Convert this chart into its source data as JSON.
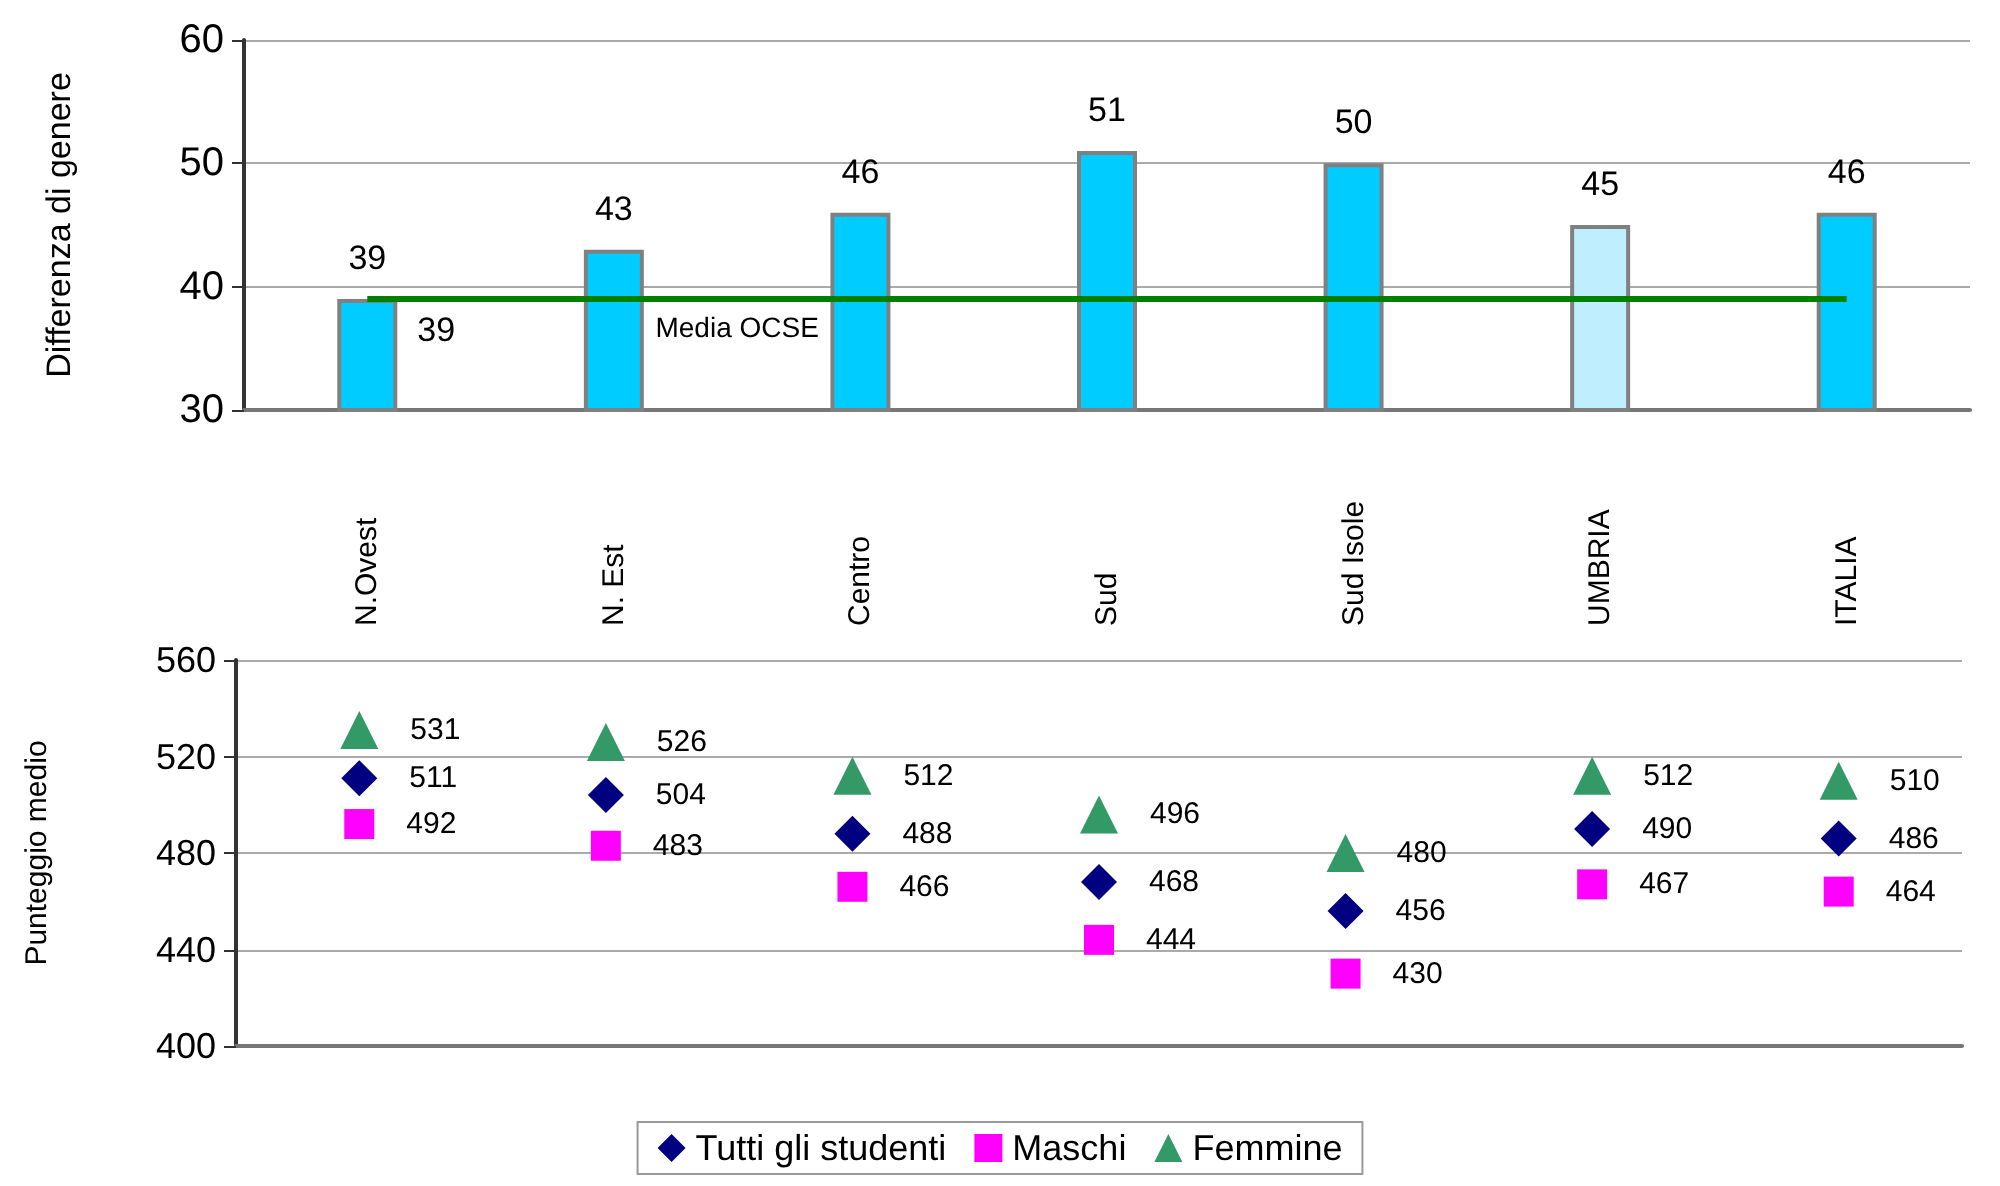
{
  "chart_data": [
    {
      "type": "bar",
      "ylabel": "Differenza di genere",
      "categories": [
        "N.Ovest",
        "N. Est",
        "Centro",
        "Sud",
        "Sud Isole",
        "UMBRIA",
        "ITALIA"
      ],
      "values": [
        39,
        43,
        46,
        51,
        50,
        45,
        46
      ],
      "colors": [
        "#00ccff",
        "#00ccff",
        "#00ccff",
        "#00ccff",
        "#00ccff",
        "#bfefff",
        "#00ccff"
      ],
      "ylim": [
        30,
        60
      ],
      "yticks": [
        30,
        40,
        50,
        60
      ],
      "grid": "y",
      "data_labels": true,
      "ref_lines": [
        {
          "axis": "y",
          "value": 39,
          "label": "Media OCSE",
          "color": "#008000"
        }
      ],
      "annotations": [
        {
          "text": "39",
          "y": 39
        }
      ]
    },
    {
      "type": "scatter",
      "ylabel": "Punteggio medio",
      "categories": [
        null,
        null,
        null,
        null,
        null,
        null,
        null
      ],
      "ylim": [
        400,
        560
      ],
      "yticks": [
        400,
        440,
        480,
        520,
        560
      ],
      "grid": "y",
      "legend": "bottom",
      "data_labels": true,
      "series": [
        {
          "name": "Tutti gli studenti",
          "color": "#000080",
          "marker": "diamond",
          "values": [
            511,
            504,
            488,
            468,
            456,
            490,
            486
          ]
        },
        {
          "name": "Maschi",
          "color": "#ff00ff",
          "marker": "square",
          "values": [
            492,
            483,
            466,
            444,
            430,
            467,
            464
          ]
        },
        {
          "name": "Femmine",
          "color": "#339966",
          "marker": "triangle",
          "values": [
            531,
            526,
            512,
            496,
            480,
            512,
            510
          ]
        }
      ]
    }
  ]
}
